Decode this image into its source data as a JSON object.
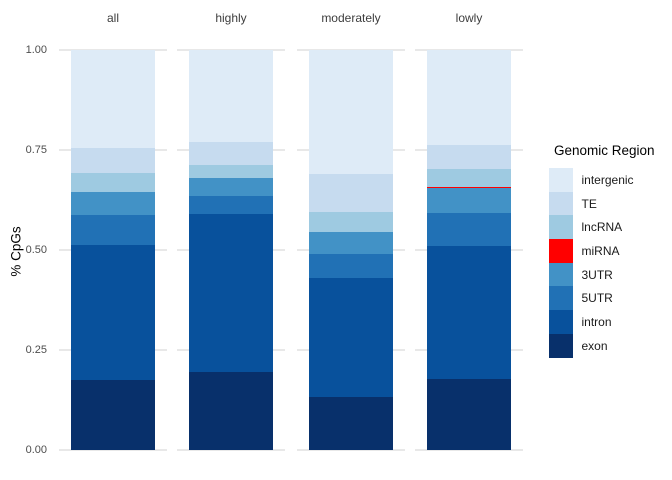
{
  "chart_data": {
    "type": "bar",
    "subtype": "stacked_proportion",
    "title": "",
    "xlabel": "",
    "ylabel": "% CpGs",
    "ylim": [
      0,
      1
    ],
    "grid": "major-horizontal",
    "legend_position": "right",
    "legend_title": "Genomic Region",
    "categories": [
      "all",
      "highly",
      "moderately",
      "lowly"
    ],
    "ytick_labels": [
      "1.00",
      "0.75",
      "0.50",
      "0.25",
      "0.00"
    ],
    "ytick_values": [
      1.0,
      0.75,
      0.5,
      0.25,
      0.0
    ],
    "series": [
      {
        "name": "intergenic",
        "color": "#DEEBF7",
        "values": [
          0.244,
          0.229,
          0.31,
          0.238
        ]
      },
      {
        "name": "TE",
        "color": "#C6DBEF",
        "values": [
          0.063,
          0.058,
          0.094,
          0.06
        ]
      },
      {
        "name": "lncRNA",
        "color": "#9ECAE1",
        "values": [
          0.047,
          0.032,
          0.05,
          0.045
        ]
      },
      {
        "name": "miRNA",
        "color": "#FF0000",
        "values": [
          0.001,
          0.001,
          0.001,
          0.001
        ]
      },
      {
        "name": "3UTR",
        "color": "#4292C6",
        "values": [
          0.057,
          0.046,
          0.054,
          0.063
        ]
      },
      {
        "name": "5UTR",
        "color": "#2171B5",
        "values": [
          0.076,
          0.043,
          0.06,
          0.083
        ]
      },
      {
        "name": "intron",
        "color": "#08519C",
        "values": [
          0.337,
          0.395,
          0.298,
          0.333
        ]
      },
      {
        "name": "exon",
        "color": "#08306B",
        "values": [
          0.175,
          0.196,
          0.133,
          0.177
        ]
      }
    ]
  }
}
